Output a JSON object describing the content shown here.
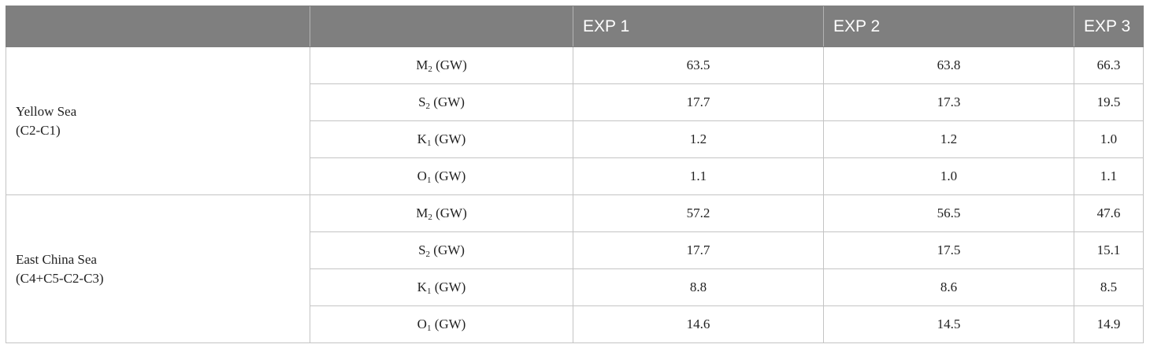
{
  "table": {
    "headers": [
      "",
      "EXP 1",
      "EXP 2",
      "EXP 3"
    ],
    "groups": [
      {
        "region_line1": "Yellow Sea",
        "region_line2": "(C2-C1)",
        "rows": [
          {
            "symbol": "M",
            "sub": "2",
            "unit": " (GW)",
            "values": [
              "63.5",
              "63.8",
              "66.3"
            ]
          },
          {
            "symbol": "S",
            "sub": "2",
            "unit": " (GW)",
            "values": [
              "17.7",
              "17.3",
              "19.5"
            ]
          },
          {
            "symbol": "K",
            "sub": "1",
            "unit": " (GW)",
            "values": [
              "1.2",
              "1.2",
              "1.0"
            ]
          },
          {
            "symbol": "O",
            "sub": "1",
            "unit": " (GW)",
            "values": [
              "1.1",
              "1.0",
              "1.1"
            ]
          }
        ]
      },
      {
        "region_line1": "East China Sea",
        "region_line2": "(C4+C5-C2-C3)",
        "rows": [
          {
            "symbol": "M",
            "sub": "2",
            "unit": " (GW)",
            "values": [
              "57.2",
              "56.5",
              "47.6"
            ]
          },
          {
            "symbol": "S",
            "sub": "2",
            "unit": " (GW)",
            "values": [
              "17.7",
              "17.5",
              "15.1"
            ]
          },
          {
            "symbol": "K",
            "sub": "1",
            "unit": " (GW)",
            "values": [
              "8.8",
              "8.6",
              "8.5"
            ]
          },
          {
            "symbol": "O",
            "sub": "1",
            "unit": " (GW)",
            "values": [
              "14.6",
              "14.5",
              "14.9"
            ]
          }
        ]
      }
    ]
  }
}
